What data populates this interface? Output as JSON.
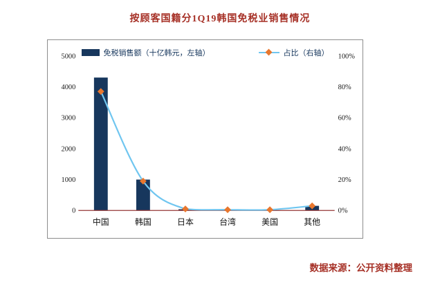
{
  "title": "按顾客国籍分1Q19韩国免税业销售情况",
  "source": "数据来源：公开资料整理",
  "legend": {
    "bar": "免税销售额（十亿韩元，左轴）",
    "line": "占比（右轴）"
  },
  "colors": {
    "bar": "#17375d",
    "line": "#70c6f0",
    "marker": "#e8772e",
    "axis": "#953735",
    "title_text": "#a63026",
    "legend_text": "#17375d",
    "tick_text": "#1a1a1a"
  },
  "chart_data": {
    "type": "bar",
    "subtype": "bar-line-combo",
    "title": "按顾客国籍分1Q19韩国免税业销售情况",
    "categories": [
      "中国",
      "韩国",
      "日本",
      "台湾",
      "美国",
      "其他"
    ],
    "series": [
      {
        "name": "免税销售额（十亿韩元，左轴）",
        "type": "bar",
        "axis": "left",
        "values": [
          4300,
          1000,
          40,
          20,
          20,
          150
        ]
      },
      {
        "name": "占比（右轴）",
        "type": "line",
        "axis": "right",
        "values": [
          77,
          19,
          1,
          0.5,
          0.5,
          3
        ]
      }
    ],
    "left_axis": {
      "min": 0,
      "max": 5000,
      "step": 1000,
      "ticks": [
        "0",
        "1000",
        "2000",
        "3000",
        "4000",
        "5000"
      ]
    },
    "right_axis": {
      "min": 0,
      "max": 100,
      "step": 20,
      "suffix": "%",
      "ticks": [
        "0%",
        "20%",
        "40%",
        "60%",
        "80%",
        "100%"
      ]
    },
    "grid": false,
    "legend_position": "top",
    "xlabel": "",
    "ylabel_left": "十亿韩元",
    "ylabel_right": "%"
  }
}
